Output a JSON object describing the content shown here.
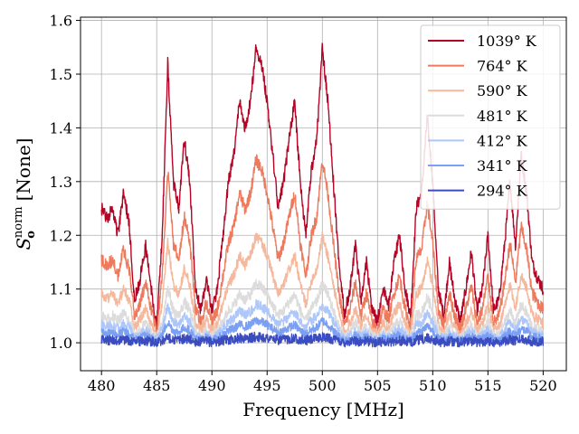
{
  "chart_data": {
    "type": "line",
    "xlabel": "Frequency [MHz]",
    "ylabel_main": "S",
    "ylabel_sub": "o",
    "ylabel_sup": "norm",
    "ylabel_unit": "[None]",
    "xlim": [
      478.1,
      522.1
    ],
    "ylim": [
      0.948,
      1.606
    ],
    "x_ticks": [
      480,
      485,
      490,
      495,
      500,
      505,
      510,
      515,
      520
    ],
    "x_tick_labels": [
      "480",
      "485",
      "490",
      "495",
      "500",
      "505",
      "510",
      "515",
      "520"
    ],
    "y_ticks": [
      1.0,
      1.1,
      1.2,
      1.3,
      1.4,
      1.5,
      1.6
    ],
    "y_tick_labels": [
      "1.0",
      "1.1",
      "1.2",
      "1.3",
      "1.4",
      "1.5",
      "1.6"
    ],
    "grid": true,
    "legend_position": "top-right",
    "x_range": [
      480,
      520
    ],
    "base_profile": {
      "x": [
        480.0,
        480.5,
        481.0,
        481.5,
        482.0,
        482.5,
        483.0,
        483.5,
        484.0,
        484.5,
        485.0,
        485.5,
        486.0,
        486.5,
        487.0,
        487.5,
        488.0,
        488.5,
        489.0,
        489.5,
        490.0,
        490.5,
        491.0,
        491.5,
        492.0,
        492.5,
        493.0,
        493.5,
        494.0,
        494.5,
        495.0,
        495.5,
        496.0,
        496.5,
        497.0,
        497.5,
        498.0,
        498.5,
        499.0,
        499.5,
        500.0,
        500.5,
        501.0,
        501.5,
        502.0,
        502.5,
        503.0,
        503.5,
        504.0,
        504.5,
        505.0,
        505.5,
        506.0,
        506.5,
        507.0,
        507.5,
        508.0,
        508.5,
        509.0,
        509.5,
        510.0,
        510.5,
        511.0,
        511.5,
        512.0,
        512.5,
        513.0,
        513.5,
        514.0,
        514.5,
        515.0,
        515.5,
        516.0,
        516.5,
        517.0,
        517.5,
        518.0,
        518.5,
        519.0,
        519.5,
        520.0
      ],
      "y_1039": [
        1.25,
        1.23,
        1.25,
        1.2,
        1.28,
        1.22,
        1.08,
        1.12,
        1.18,
        1.1,
        1.03,
        1.2,
        1.52,
        1.3,
        1.25,
        1.38,
        1.3,
        1.1,
        1.06,
        1.12,
        1.06,
        1.1,
        1.2,
        1.3,
        1.35,
        1.45,
        1.4,
        1.45,
        1.55,
        1.52,
        1.45,
        1.35,
        1.25,
        1.3,
        1.38,
        1.45,
        1.3,
        1.2,
        1.32,
        1.38,
        1.55,
        1.45,
        1.3,
        1.15,
        1.05,
        1.1,
        1.18,
        1.08,
        1.15,
        1.06,
        1.04,
        1.1,
        1.07,
        1.15,
        1.2,
        1.1,
        1.05,
        1.25,
        1.28,
        1.42,
        1.3,
        1.1,
        1.05,
        1.15,
        1.08,
        1.04,
        1.1,
        1.17,
        1.06,
        1.1,
        1.2,
        1.06,
        1.08,
        1.18,
        1.3,
        1.18,
        1.35,
        1.28,
        1.15,
        1.12,
        1.1
      ]
    },
    "series": [
      {
        "name": "1039° K",
        "color": "#b40426",
        "scale": 1.0,
        "noise": 0.012,
        "seed": 1
      },
      {
        "name": "764° K",
        "color": "#ee7a5e",
        "scale": 0.62,
        "noise": 0.012,
        "seed": 2
      },
      {
        "name": "590° K",
        "color": "#f6b89c",
        "scale": 0.36,
        "noise": 0.01,
        "seed": 3
      },
      {
        "name": "481° K",
        "color": "#dcdcdc",
        "scale": 0.2,
        "noise": 0.01,
        "seed": 4
      },
      {
        "name": "412° K",
        "color": "#aec7fb",
        "scale": 0.13,
        "noise": 0.009,
        "seed": 5
      },
      {
        "name": "341° K",
        "color": "#7a9ff3",
        "scale": 0.075,
        "noise": 0.008,
        "seed": 6
      },
      {
        "name": "294° K",
        "color": "#3b4cc0",
        "scale": 0.02,
        "noise": 0.009,
        "seed": 7
      }
    ]
  }
}
